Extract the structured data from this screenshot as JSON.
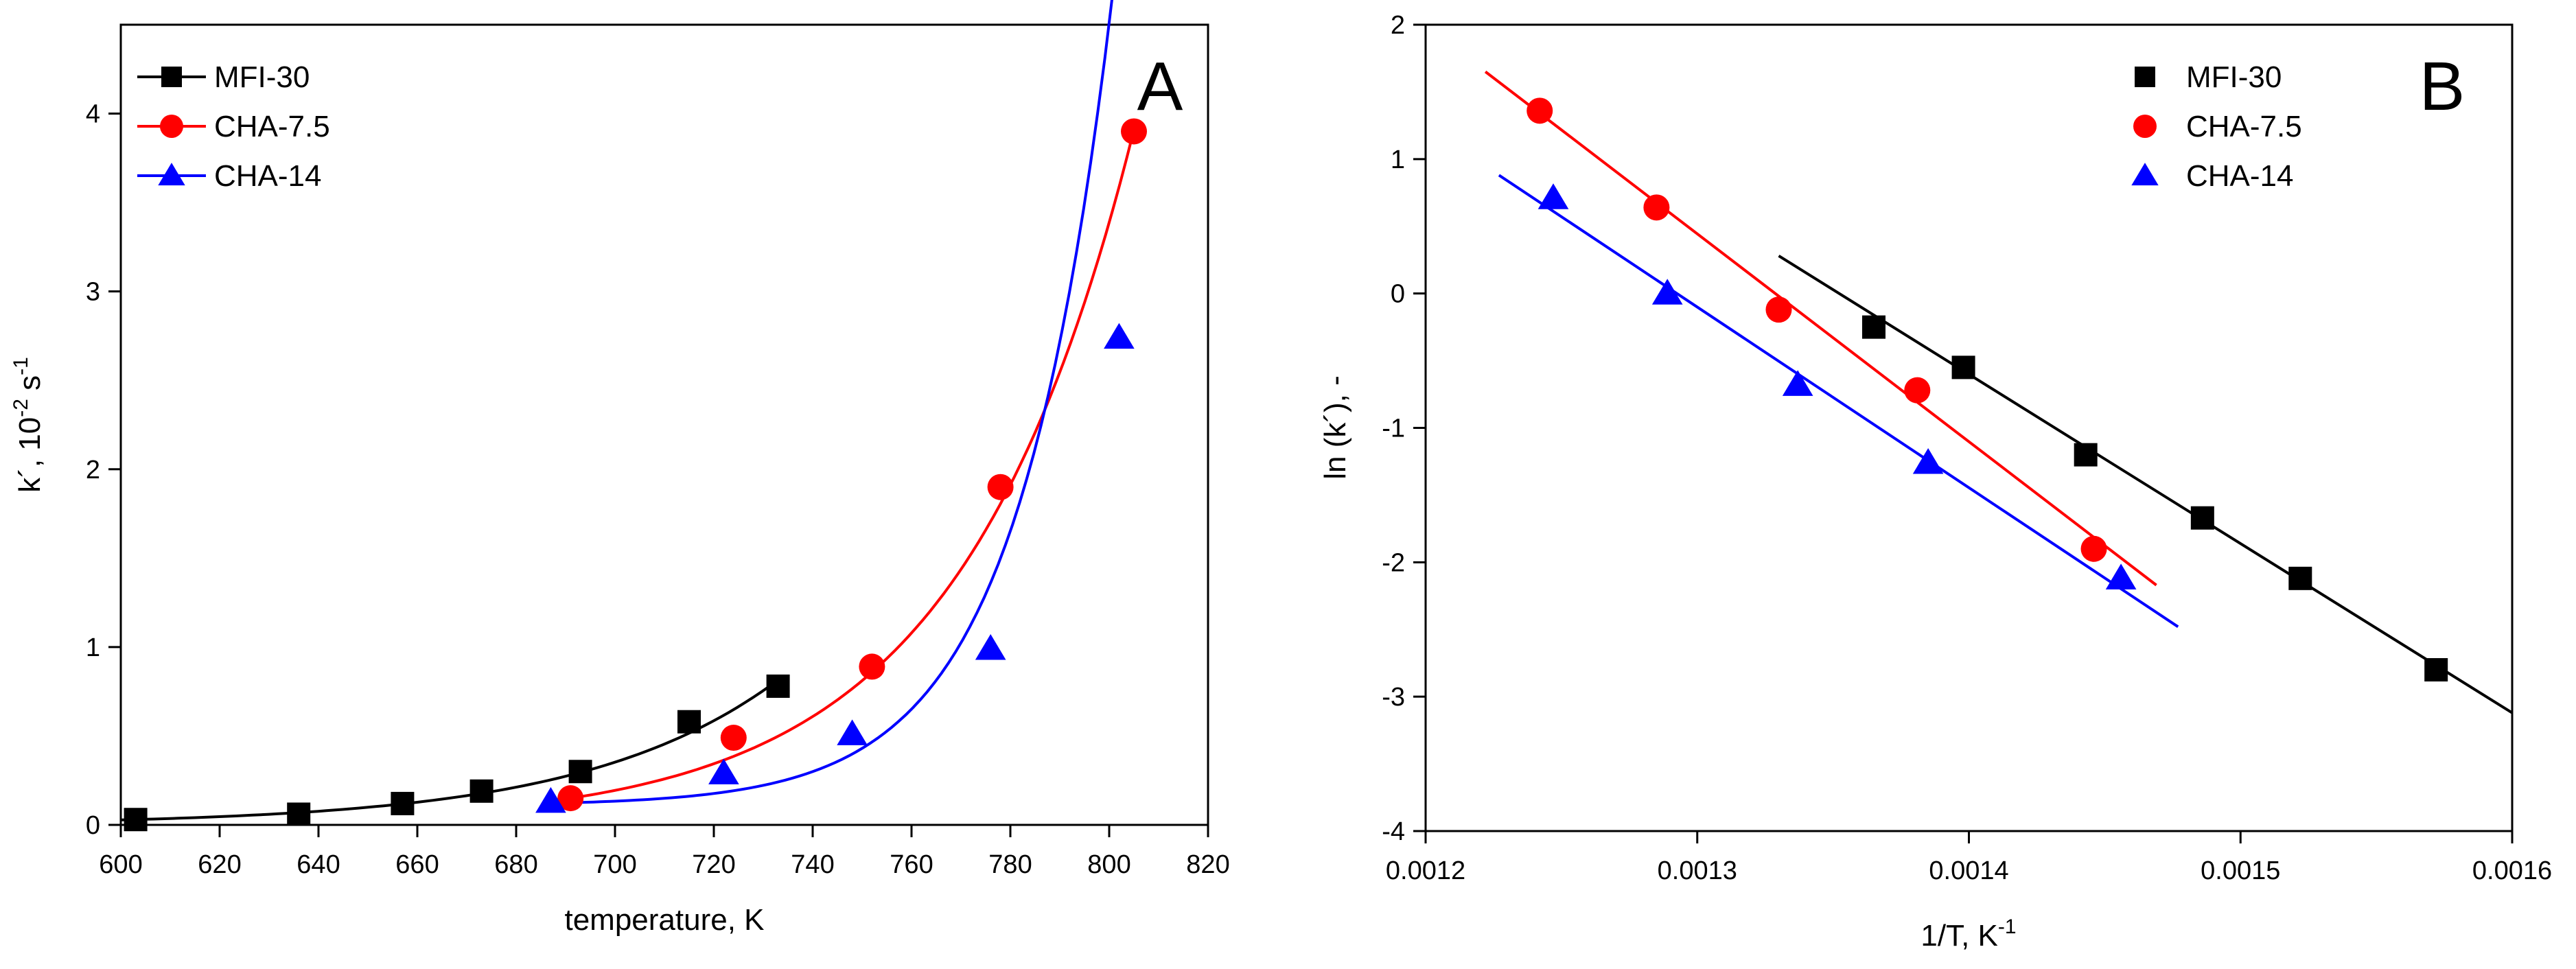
{
  "chart_data": [
    {
      "type": "scatter",
      "panel_label": "A",
      "xlabel": "temperature, K",
      "ylabel_parts": {
        "main": "k´, 10",
        "exp1": "-2",
        "mid": " s",
        "exp2": "-1"
      },
      "xlim": [
        600,
        820
      ],
      "ylim": [
        0,
        4.5
      ],
      "xticks": [
        600,
        620,
        640,
        660,
        680,
        700,
        720,
        740,
        760,
        780,
        800,
        820
      ],
      "yticks": [
        0,
        1,
        2,
        3,
        4
      ],
      "xtick_labels": [
        "600",
        "620",
        "640",
        "660",
        "680",
        "700",
        "720",
        "740",
        "760",
        "780",
        "800",
        "820"
      ],
      "ytick_labels": [
        "0",
        "1",
        "2",
        "3",
        "4"
      ],
      "legend_position": "top-left",
      "legend_style": "line-and-marker",
      "series": [
        {
          "name": "MFI-30",
          "color": "#000000",
          "marker": "square",
          "x": [
            603,
            636,
            657,
            673,
            693,
            715,
            733
          ],
          "y": [
            0.03,
            0.06,
            0.12,
            0.19,
            0.3,
            0.58,
            0.78
          ],
          "fit": {
            "kind": "exp",
            "a": 0.03,
            "x0": 603,
            "k": 0.0254,
            "x_range": [
              600,
              733
            ]
          }
        },
        {
          "name": "CHA-7.5",
          "color": "#ff0000",
          "marker": "circle",
          "x": [
            691,
            724,
            752,
            778,
            805
          ],
          "y": [
            0.15,
            0.49,
            0.89,
            1.9,
            3.9
          ],
          "fit": {
            "kind": "exp",
            "a": 0.15,
            "x0": 691,
            "k": 0.0286,
            "x_range": [
              691,
              805
            ]
          }
        },
        {
          "name": "CHA-14",
          "color": "#0000ff",
          "marker": "triangle",
          "x": [
            687,
            722,
            748,
            776,
            802
          ],
          "y": [
            0.13,
            0.29,
            0.51,
            0.99,
            2.74
          ],
          "fit": {
            "kind": "exp_offset",
            "a": 0.0118,
            "k": 0.0524,
            "c": 0.11,
            "x0": 748,
            "x_range": [
              687,
              802
            ]
          }
        }
      ]
    },
    {
      "type": "scatter",
      "panel_label": "B",
      "xlabel_parts": {
        "main": "1/T, K",
        "exp": "-1"
      },
      "ylabel": "ln (k´), -",
      "xlim": [
        0.0012,
        0.0016
      ],
      "ylim": [
        -4,
        2
      ],
      "xticks": [
        0.0012,
        0.0013,
        0.0014,
        0.0015,
        0.0016
      ],
      "yticks": [
        -4,
        -3,
        -2,
        -1,
        0,
        1,
        2
      ],
      "xtick_labels": [
        "0.0012",
        "0.0013",
        "0.0014",
        "0.0015",
        "0.0016"
      ],
      "ytick_labels": [
        "-4",
        "-3",
        "-2",
        "-1",
        "0",
        "1",
        "2"
      ],
      "legend_position": "top-right",
      "legend_style": "marker-only",
      "series": [
        {
          "name": "MFI-30",
          "color": "#000000",
          "marker": "square",
          "x": [
            0.001365,
            0.001398,
            0.001443,
            0.001486,
            0.001522,
            0.001572
          ],
          "y": [
            -0.25,
            -0.55,
            -1.2,
            -1.67,
            -2.12,
            -2.8
          ],
          "fit": {
            "kind": "linear",
            "x_range": [
              0.00133,
              0.0016
            ],
            "y_range": [
              0.28,
              -3.12
            ]
          }
        },
        {
          "name": "CHA-7.5",
          "color": "#ff0000",
          "marker": "circle",
          "x": [
            0.001242,
            0.001285,
            0.00133,
            0.001381,
            0.001446
          ],
          "y": [
            1.36,
            0.64,
            -0.12,
            -0.72,
            -1.9
          ],
          "fit": {
            "kind": "linear",
            "x_range": [
              0.001222,
              0.001469
            ],
            "y_range": [
              1.65,
              -2.17
            ]
          }
        },
        {
          "name": "CHA-14",
          "color": "#0000ff",
          "marker": "triangle",
          "x": [
            0.001247,
            0.001289,
            0.001337,
            0.001385,
            0.001456
          ],
          "y": [
            0.71,
            0.0,
            -0.68,
            -1.26,
            -2.12
          ],
          "fit": {
            "kind": "linear",
            "x_range": [
              0.001227,
              0.001477
            ],
            "y_range": [
              0.88,
              -2.48
            ]
          }
        }
      ]
    }
  ]
}
